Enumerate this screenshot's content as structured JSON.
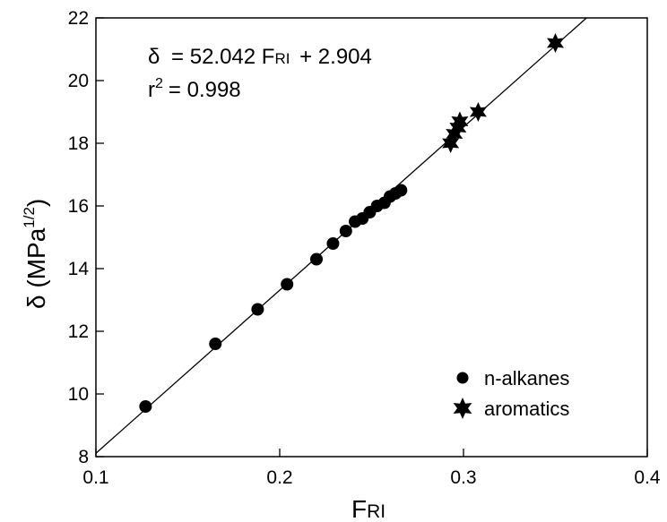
{
  "chart_data": {
    "type": "scatter",
    "xlabel_main": "F",
    "xlabel_sub": "RI",
    "ylabel_main": "δ (MPa",
    "ylabel_sup": "1/2",
    "ylabel_close": ")",
    "xlim": [
      0.1,
      0.4
    ],
    "ylim": [
      8,
      22
    ],
    "x_ticks": [
      0.1,
      0.2,
      0.3,
      0.4
    ],
    "x_tick_labels": [
      "0.1",
      "0.2",
      "0.3",
      "0.4"
    ],
    "y_ticks": [
      8,
      10,
      12,
      14,
      16,
      18,
      20,
      22
    ],
    "y_tick_labels": [
      "8",
      "10",
      "12",
      "14",
      "16",
      "18",
      "20",
      "22"
    ],
    "grid": false,
    "legend_position": "bottom-right",
    "fit_line": {
      "slope": 52.042,
      "intercept": 2.904
    },
    "annotation": {
      "eq_lhs": "δ",
      "eq_mid": "= 52.042 F",
      "eq_sub": "RI",
      "eq_tail": "+ 2.904",
      "r2_base": "r",
      "r2_sup": "2",
      "r2_tail": "= 0.998"
    },
    "series": [
      {
        "name": "n-alkanes",
        "marker": "circle",
        "x": [
          0.127,
          0.165,
          0.188,
          0.204,
          0.22,
          0.229,
          0.236,
          0.241,
          0.245,
          0.249,
          0.253,
          0.257,
          0.26,
          0.263,
          0.266
        ],
        "y": [
          9.6,
          11.6,
          12.7,
          13.5,
          14.3,
          14.8,
          15.2,
          15.5,
          15.6,
          15.8,
          16.0,
          16.1,
          16.3,
          16.4,
          16.5
        ]
      },
      {
        "name": "aromatics",
        "marker": "star",
        "x": [
          0.293,
          0.295,
          0.297,
          0.298,
          0.308,
          0.35
        ],
        "y": [
          18.0,
          18.3,
          18.5,
          18.7,
          19.0,
          21.2
        ]
      }
    ]
  }
}
